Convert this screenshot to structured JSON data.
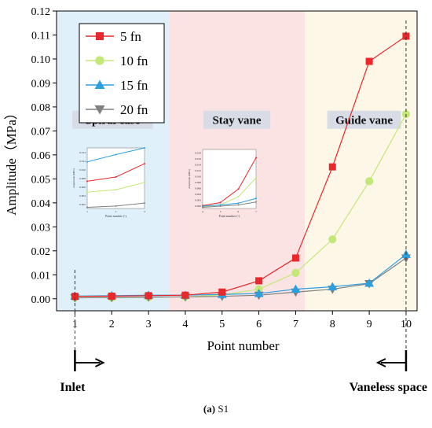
{
  "chart_data": {
    "type": "line",
    "xlabel": "Point number",
    "ylabel": "Amplitude（MPa）",
    "x": [
      1,
      2,
      3,
      4,
      5,
      6,
      7,
      8,
      9,
      10
    ],
    "xlim": [
      0.5,
      10.3
    ],
    "ylim": [
      -0.005,
      0.12
    ],
    "y_ticks": [
      0.0,
      0.01,
      0.02,
      0.03,
      0.04,
      0.05,
      0.06,
      0.07,
      0.08,
      0.09,
      0.1,
      0.11,
      0.12
    ],
    "y_tick_labels": [
      "0.00",
      "0.01",
      "0.02",
      "0.03",
      "0.04",
      "0.05",
      "0.06",
      "0.07",
      "0.08",
      "0.09",
      "0.10",
      "0.11",
      "0.12"
    ],
    "x_tick_labels": [
      "1",
      "2",
      "3",
      "4",
      "5",
      "6",
      "7",
      "8",
      "9",
      "10"
    ],
    "legend_position": "top-left",
    "series": [
      {
        "name": "5 fn",
        "color": "#e8282b",
        "marker": "square",
        "values": [
          0.001,
          0.0011,
          0.0013,
          0.0015,
          0.0028,
          0.0075,
          0.017,
          0.055,
          0.099,
          0.1095
        ]
      },
      {
        "name": "10 fn",
        "color": "#c3e878",
        "marker": "circle",
        "values": [
          0.0005,
          0.0004,
          0.0006,
          0.0008,
          0.0016,
          0.004,
          0.0108,
          0.0248,
          0.049,
          0.077
        ]
      },
      {
        "name": "15 fn",
        "color": "#2c9fe0",
        "marker": "triangle-up",
        "values": [
          0.0011,
          0.0013,
          0.0015,
          0.0015,
          0.0018,
          0.0022,
          0.004,
          0.005,
          0.0065,
          0.0185
        ]
      },
      {
        "name": "20 fn",
        "color": "#808080",
        "marker": "triangle-down",
        "values": [
          0.0004,
          0.0005,
          0.0007,
          0.0008,
          0.001,
          0.0015,
          0.0028,
          0.004,
          0.0063,
          0.017
        ]
      }
    ],
    "regions": [
      {
        "label": "Spiral case",
        "from": 0.5,
        "to": 3.55,
        "color": "#dff0fb"
      },
      {
        "label": "Stay vane",
        "from": 3.55,
        "to": 7.25,
        "color": "#fbe3e3"
      },
      {
        "label": "Guide vane",
        "from": 7.25,
        "to": 10.3,
        "color": "#fdf7e7"
      }
    ],
    "reference_lines": [
      {
        "x": 1,
        "label": "Inlet",
        "arrow": "right"
      },
      {
        "x": 10,
        "label": "Vaneless space",
        "arrow": "left"
      }
    ],
    "insets": [
      {
        "xlabel": "Point number (-)",
        "ylabel": "Amplitude (MPa)",
        "x_tick_labels": [
          "1",
          "2",
          "3"
        ],
        "y_tick_labels": [
          "0.002",
          "0.004",
          "0.006",
          "0.008",
          "0.010",
          "0.012",
          "0.014"
        ]
      },
      {
        "xlabel": "Point number (-)",
        "ylabel": "Amplitude (MPa)",
        "x_tick_labels": [
          "4",
          "5",
          "6",
          "7"
        ],
        "y_tick_labels": [
          "0.000",
          "0.002",
          "0.004",
          "0.006",
          "0.008",
          "0.010",
          "0.012",
          "0.014",
          "0.016",
          "0.018"
        ]
      }
    ]
  },
  "caption": {
    "prefix": "(a)",
    "text": " S1"
  }
}
